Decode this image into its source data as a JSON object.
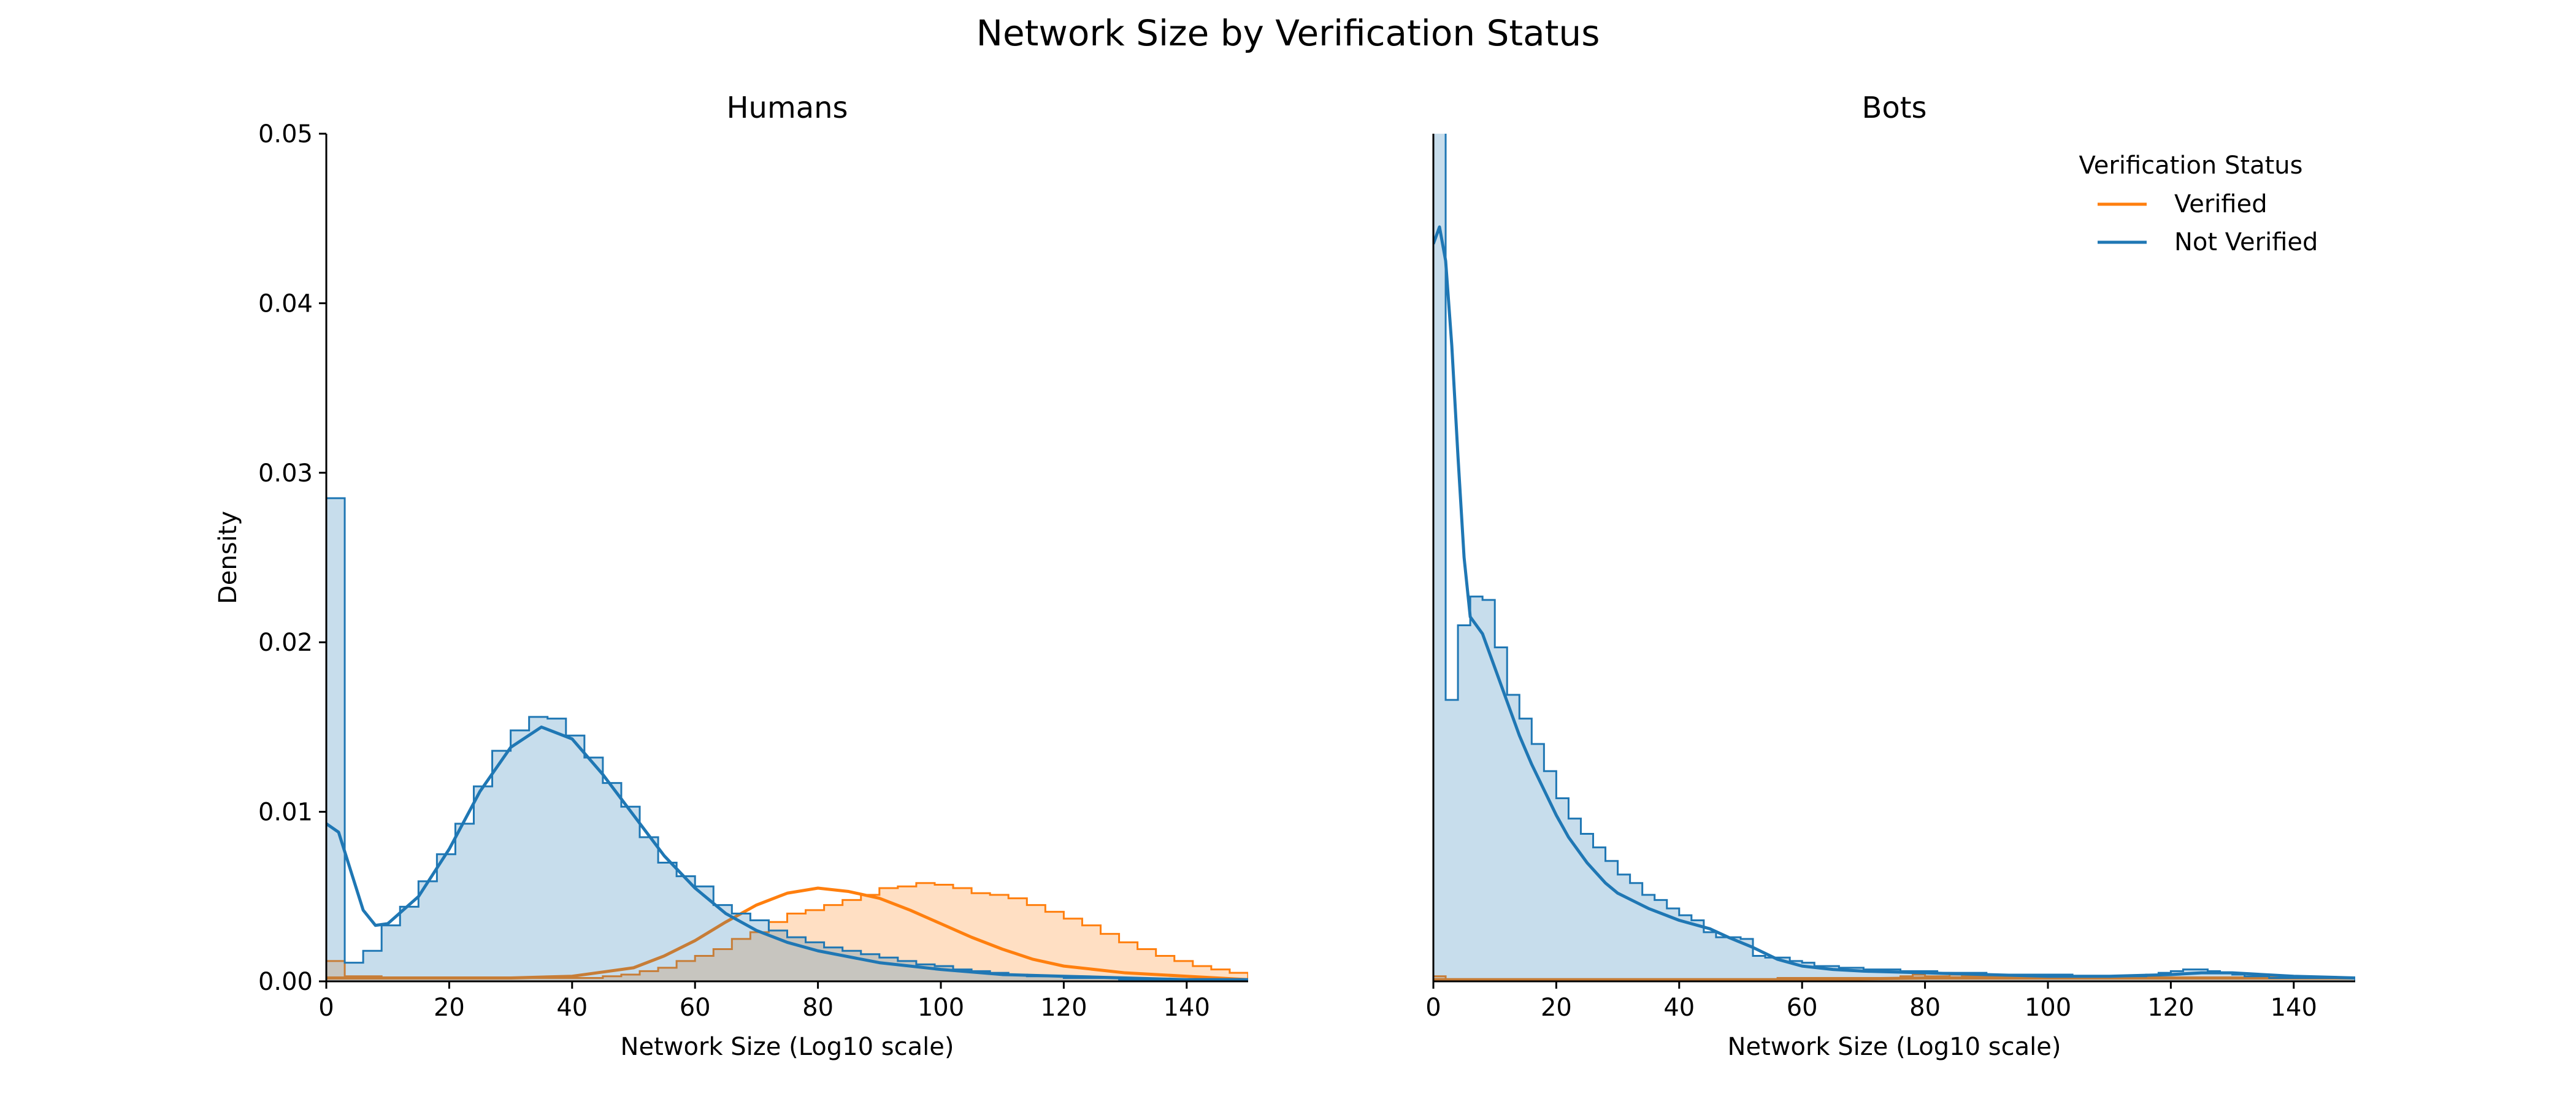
{
  "figure": {
    "title": "Network Size by Verification Status"
  },
  "legend": {
    "title": "Verification Status",
    "placement": "upper right of Bots panel",
    "entries": [
      {
        "label": "Verified",
        "color": "#ff7f0e"
      },
      {
        "label": "Not Verified",
        "color": "#1f77b4"
      }
    ]
  },
  "colors": {
    "verified": "#ff7f0e",
    "not_verified": "#1f77b4",
    "axis": "#000000"
  },
  "chart_data": [
    {
      "type": "histogram+kde",
      "title": "Humans",
      "xlabel": "Network Size (Log10 scale)",
      "ylabel": "Density",
      "xlim": [
        0,
        150
      ],
      "ylim": [
        0,
        0.05
      ],
      "xticks": [
        0,
        20,
        40,
        60,
        80,
        100,
        120,
        140
      ],
      "xtick_labels": [
        "0",
        "20",
        "40",
        "60",
        "80",
        "100",
        "120",
        "140"
      ],
      "yticks": [
        0,
        0.01,
        0.02,
        0.03,
        0.04,
        0.05
      ],
      "ytick_labels": [
        "0.00",
        "0.01",
        "0.02",
        "0.03",
        "0.04",
        "0.05"
      ],
      "grid": false,
      "bin_width": 3,
      "series": [
        {
          "name": "Verified",
          "color": "#ff7f0e",
          "hist_density": [
            0.0012,
            0.0003,
            0.0003,
            0.0002,
            0.0002,
            0.0002,
            0.0002,
            0.0002,
            0.0002,
            0.0002,
            0.0002,
            0.0002,
            0.0002,
            0.0002,
            0.0002,
            0.0003,
            0.0004,
            0.0006,
            0.0008,
            0.0012,
            0.0015,
            0.0019,
            0.0025,
            0.0029,
            0.0035,
            0.004,
            0.0042,
            0.0045,
            0.0048,
            0.0051,
            0.0055,
            0.0056,
            0.0058,
            0.0057,
            0.0055,
            0.0052,
            0.0051,
            0.0049,
            0.0045,
            0.0041,
            0.0037,
            0.0033,
            0.0028,
            0.0023,
            0.0019,
            0.0015,
            0.0012,
            0.0009,
            0.0007,
            0.0005
          ],
          "kde_x": [
            0,
            10,
            20,
            30,
            40,
            50,
            55,
            60,
            65,
            70,
            75,
            80,
            85,
            90,
            95,
            100,
            105,
            110,
            115,
            120,
            130,
            140,
            150
          ],
          "kde_y": [
            0.0002,
            0.0002,
            0.0002,
            0.0002,
            0.0003,
            0.0008,
            0.0015,
            0.0024,
            0.0035,
            0.0045,
            0.0052,
            0.0055,
            0.0053,
            0.0049,
            0.0042,
            0.0034,
            0.0026,
            0.0019,
            0.0013,
            0.0009,
            0.0005,
            0.0003,
            0.0001
          ]
        },
        {
          "name": "Not Verified",
          "color": "#1f77b4",
          "hist_density": [
            0.0285,
            0.0011,
            0.0018,
            0.0033,
            0.0044,
            0.0059,
            0.0075,
            0.0093,
            0.0115,
            0.0136,
            0.0148,
            0.0156,
            0.0155,
            0.0145,
            0.0132,
            0.0117,
            0.0103,
            0.0085,
            0.007,
            0.0062,
            0.0056,
            0.0045,
            0.004,
            0.0036,
            0.003,
            0.0026,
            0.0023,
            0.002,
            0.0018,
            0.0016,
            0.0014,
            0.0012,
            0.001,
            0.0009,
            0.0007,
            0.0006,
            0.0005,
            0.0004,
            0.0003,
            0.0003,
            0.0002,
            0.0002,
            0.0002,
            0.0001,
            0.0001,
            0.0001,
            0.0001,
            0.0001,
            0.0001,
            0.0001
          ],
          "kde_x": [
            0,
            2,
            4,
            6,
            8,
            10,
            15,
            20,
            25,
            30,
            35,
            40,
            45,
            50,
            55,
            60,
            65,
            70,
            75,
            80,
            90,
            100,
            110,
            120,
            130,
            140,
            150
          ],
          "kde_y": [
            0.0093,
            0.0088,
            0.0065,
            0.0042,
            0.0033,
            0.0034,
            0.005,
            0.0078,
            0.0112,
            0.0138,
            0.015,
            0.0143,
            0.0122,
            0.0098,
            0.0074,
            0.0055,
            0.004,
            0.003,
            0.0023,
            0.0018,
            0.0011,
            0.0007,
            0.0004,
            0.0003,
            0.0002,
            0.0001,
            0.0001
          ]
        }
      ]
    },
    {
      "type": "histogram+kde",
      "title": "Bots",
      "xlabel": "Network Size (Log10 scale)",
      "ylabel": "",
      "xlim": [
        0,
        150
      ],
      "ylim": [
        0,
        0.05
      ],
      "xticks": [
        0,
        20,
        40,
        60,
        80,
        100,
        120,
        140
      ],
      "xtick_labels": [
        "0",
        "20",
        "40",
        "60",
        "80",
        "100",
        "120",
        "140"
      ],
      "grid": false,
      "bin_width": 2,
      "series": [
        {
          "name": "Verified",
          "color": "#ff7f0e",
          "hist_density": [
            0.0003,
            0.0001,
            0.0001,
            0.0001,
            0.0001,
            0.0001,
            0.0001,
            0.0001,
            0.0001,
            0.0001,
            0.0001,
            0.0001,
            0.0001,
            0.0001,
            0.0001,
            0.0001,
            0.0001,
            0.0001,
            0.0001,
            0.0001,
            0.0001,
            0.0001,
            0.0001,
            0.0001,
            0.0001,
            0.0001,
            0.0001,
            0.0001,
            0.0002,
            0.0002,
            0.0002,
            0.0002,
            0.0002,
            0.0002,
            0.0002,
            0.0002,
            0.0002,
            0.0002,
            0.0003,
            0.0004,
            0.0003,
            0.0003,
            0.0004,
            0.0003,
            0.0003,
            0.0003,
            0.0003,
            0.0002,
            0.0002,
            0.0002,
            0.0002,
            0.0002,
            0.0002,
            0.0002,
            0.0002,
            0.0002,
            0.0002,
            0.0002,
            0.0002,
            0.0002,
            0.0002,
            0.0002,
            0.0002,
            0.0002,
            0.0002,
            0.0002,
            0.0002,
            0.0002,
            0.0002,
            0.0002,
            0.0002,
            0.0002,
            0.0002,
            0.0002,
            0.0002
          ],
          "kde_x": [
            0,
            20,
            40,
            60,
            80,
            100,
            120,
            140,
            150
          ],
          "kde_y": [
            0.0001,
            0.0001,
            0.0001,
            0.0001,
            0.0002,
            0.0002,
            0.0002,
            0.0002,
            0.0002
          ]
        },
        {
          "name": "Not Verified",
          "color": "#1f77b4",
          "hist_density": [
            0.058,
            0.0166,
            0.021,
            0.0227,
            0.0225,
            0.0197,
            0.0169,
            0.0155,
            0.014,
            0.0124,
            0.0108,
            0.0096,
            0.0087,
            0.0079,
            0.0071,
            0.0063,
            0.0058,
            0.0051,
            0.0048,
            0.0043,
            0.0039,
            0.0036,
            0.0029,
            0.0026,
            0.0026,
            0.0025,
            0.0015,
            0.0014,
            0.0014,
            0.0012,
            0.0011,
            0.0009,
            0.0009,
            0.0008,
            0.0008,
            0.0007,
            0.0007,
            0.0007,
            0.0006,
            0.0006,
            0.0006,
            0.0005,
            0.0005,
            0.0005,
            0.0005,
            0.0004,
            0.0004,
            0.0004,
            0.0004,
            0.0004,
            0.0004,
            0.0004,
            0.0003,
            0.0003,
            0.0003,
            0.0003,
            0.0003,
            0.0003,
            0.0004,
            0.0005,
            0.0006,
            0.0007,
            0.0007,
            0.0006,
            0.0005,
            0.0004,
            0.0003,
            0.0003,
            0.0002,
            0.0002,
            0.0002,
            0.0002,
            0.0002,
            0.0002,
            0.0002
          ],
          "kde_x": [
            0,
            1,
            2,
            3,
            4,
            5,
            6,
            8,
            10,
            12,
            14,
            16,
            18,
            20,
            22,
            25,
            28,
            30,
            35,
            40,
            45,
            48,
            52,
            56,
            60,
            65,
            70,
            80,
            90,
            100,
            110,
            120,
            125,
            130,
            135,
            140,
            150
          ],
          "kde_y": [
            0.0435,
            0.0445,
            0.0425,
            0.0375,
            0.031,
            0.025,
            0.0215,
            0.0205,
            0.0185,
            0.0165,
            0.0145,
            0.0128,
            0.0113,
            0.0098,
            0.0085,
            0.007,
            0.0058,
            0.0052,
            0.0043,
            0.0036,
            0.0031,
            0.0026,
            0.002,
            0.0013,
            0.0009,
            0.0007,
            0.0006,
            0.0005,
            0.0004,
            0.0003,
            0.0003,
            0.0004,
            0.0005,
            0.0005,
            0.0004,
            0.0003,
            0.0002
          ]
        }
      ]
    }
  ]
}
